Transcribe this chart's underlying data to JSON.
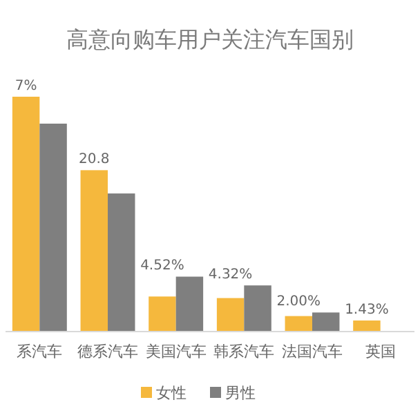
{
  "chart_data": {
    "type": "bar",
    "title": "高意向购车用户关注汽车国别",
    "categories": [
      "系汽车",
      "德系汽车",
      "美国汽车",
      "韩系汽车",
      "法国汽车",
      "英国"
    ],
    "series": [
      {
        "name": "女性",
        "color": "#f5b83d",
        "values": [
          30.27,
          20.8,
          4.52,
          4.32,
          2.0,
          1.43
        ],
        "value_labels": [
          null,
          "20.8",
          "4.52%",
          "4.32%",
          "2.00%",
          "1.43%"
        ]
      },
      {
        "name": "男性",
        "color": "#7f7f7f",
        "values": [
          26.8,
          17.8,
          7.08,
          5.95,
          2.46,
          null
        ]
      }
    ],
    "annotations": [
      {
        "text": "7%",
        "x": "系汽车",
        "y": 30.27
      }
    ],
    "legend": "bottom",
    "grid": false
  }
}
